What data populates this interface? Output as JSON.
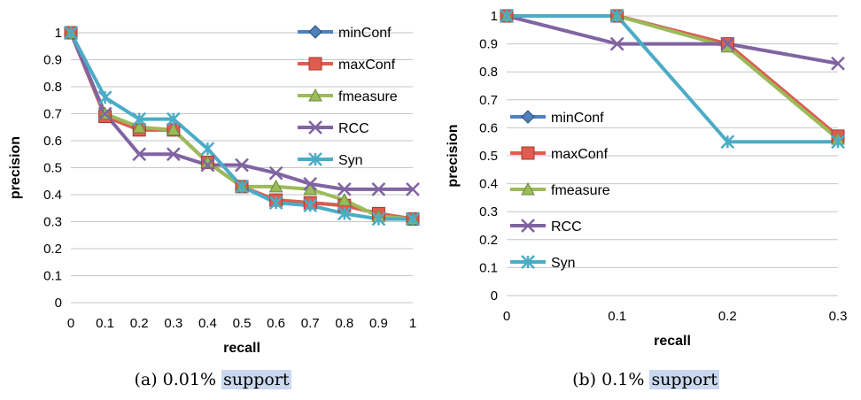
{
  "colors": {
    "minConf": "#4f81bd",
    "maxConf": "#e05c4f",
    "fmeasure": "#9bbb59",
    "RCC": "#8064a2",
    "Syn": "#4bacc6",
    "grid": "#c6c6c6",
    "highlight": "#c9d7ef"
  },
  "chart_data": [
    {
      "type": "line",
      "xlabel": "recall",
      "ylabel": "precision",
      "ylim": [
        0,
        1
      ],
      "xlim": [
        0,
        1
      ],
      "x_ticks": [
        "0",
        "0.1",
        "0.2",
        "0.3",
        "0.4",
        "0.5",
        "0.6",
        "0.7",
        "0.8",
        "0.9",
        "1"
      ],
      "y_ticks": [
        "0",
        "0.1",
        "0.2",
        "0.3",
        "0.4",
        "0.5",
        "0.6",
        "0.7",
        "0.8",
        "0.9",
        "1"
      ],
      "grid": true,
      "legend_position": "top-right",
      "caption_prefix": "(a) 0.01%",
      "caption_highlight": "support",
      "series": [
        {
          "name": "minConf",
          "marker": "diamond",
          "x": [
            0,
            0.1,
            0.2,
            0.3,
            0.4,
            0.5,
            0.6,
            0.7,
            0.8,
            0.9,
            1
          ],
          "y": [
            1,
            0.69,
            0.64,
            0.64,
            0.52,
            0.43,
            0.38,
            0.37,
            0.36,
            0.33,
            0.31
          ]
        },
        {
          "name": "maxConf",
          "marker": "square",
          "x": [
            0,
            0.1,
            0.2,
            0.3,
            0.4,
            0.5,
            0.6,
            0.7,
            0.8,
            0.9,
            1
          ],
          "y": [
            1,
            0.69,
            0.64,
            0.64,
            0.52,
            0.43,
            0.38,
            0.37,
            0.36,
            0.33,
            0.31
          ]
        },
        {
          "name": "fmeasure",
          "marker": "triangle",
          "x": [
            0,
            0.1,
            0.2,
            0.3,
            0.4,
            0.5,
            0.6,
            0.7,
            0.8,
            0.9,
            1
          ],
          "y": [
            1,
            0.7,
            0.65,
            0.64,
            0.52,
            0.43,
            0.43,
            0.42,
            0.38,
            0.32,
            0.31
          ]
        },
        {
          "name": "RCC",
          "marker": "x",
          "x": [
            0,
            0.1,
            0.2,
            0.3,
            0.4,
            0.5,
            0.6,
            0.7,
            0.8,
            0.9,
            1
          ],
          "y": [
            1,
            0.7,
            0.55,
            0.55,
            0.51,
            0.51,
            0.48,
            0.44,
            0.42,
            0.42,
            0.42
          ]
        },
        {
          "name": "Syn",
          "marker": "star",
          "x": [
            0,
            0.1,
            0.2,
            0.3,
            0.4,
            0.5,
            0.6,
            0.7,
            0.8,
            0.9,
            1
          ],
          "y": [
            1,
            0.76,
            0.68,
            0.68,
            0.57,
            0.43,
            0.37,
            0.36,
            0.33,
            0.31,
            0.31
          ]
        }
      ]
    },
    {
      "type": "line",
      "xlabel": "recall",
      "ylabel": "precision",
      "ylim": [
        0,
        1
      ],
      "xlim": [
        0,
        0.3
      ],
      "x_ticks": [
        "0",
        "0.1",
        "0.2",
        "0.3"
      ],
      "y_ticks": [
        "0",
        "0.1",
        "0.2",
        "0.3",
        "0.4",
        "0.5",
        "0.6",
        "0.7",
        "0.8",
        "0.9",
        "1"
      ],
      "grid": true,
      "legend_position": "left",
      "caption_prefix": "(b) 0.1%",
      "caption_highlight": "support",
      "series": [
        {
          "name": "minConf",
          "marker": "diamond",
          "x": [
            0,
            0.1,
            0.2,
            0.3
          ],
          "y": [
            1,
            1,
            0.9,
            0.57
          ]
        },
        {
          "name": "maxConf",
          "marker": "square",
          "x": [
            0,
            0.1,
            0.2,
            0.3
          ],
          "y": [
            1,
            1,
            0.9,
            0.57
          ]
        },
        {
          "name": "fmeasure",
          "marker": "triangle",
          "x": [
            0,
            0.1,
            0.2,
            0.3
          ],
          "y": [
            1,
            1,
            0.89,
            0.56
          ]
        },
        {
          "name": "RCC",
          "marker": "x",
          "x": [
            0,
            0.1,
            0.2,
            0.3
          ],
          "y": [
            1,
            0.9,
            0.9,
            0.83
          ]
        },
        {
          "name": "Syn",
          "marker": "star",
          "x": [
            0,
            0.1,
            0.2,
            0.3
          ],
          "y": [
            1,
            1,
            0.55,
            0.55
          ]
        }
      ]
    }
  ]
}
